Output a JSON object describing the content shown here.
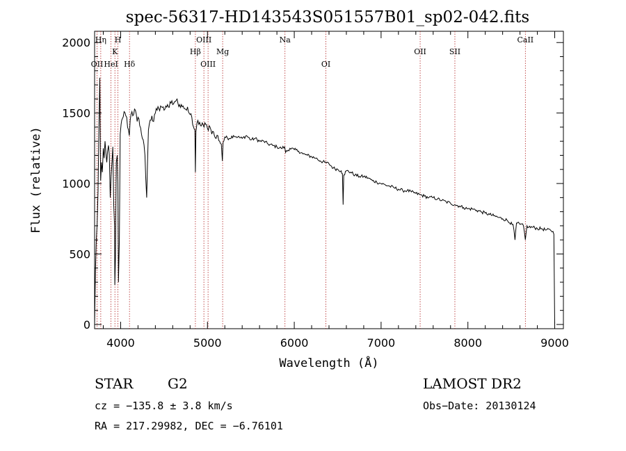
{
  "chart_data": {
    "type": "line",
    "title": "spec-56317-HD143543S051557B01_sp02-042.fits",
    "xlabel": "Wavelength (Å)",
    "ylabel": "Flux (relative)",
    "xlim": [
      3700,
      9100
    ],
    "ylim": [
      -30,
      2080
    ],
    "x_ticks": [
      4000,
      5000,
      6000,
      7000,
      8000,
      9000
    ],
    "y_ticks": [
      0,
      500,
      1000,
      1500,
      2000
    ],
    "series": [
      {
        "name": "spectrum",
        "x": [
          3700,
          3710,
          3720,
          3730,
          3740,
          3750,
          3760,
          3770,
          3780,
          3790,
          3800,
          3810,
          3820,
          3830,
          3840,
          3850,
          3860,
          3870,
          3880,
          3890,
          3900,
          3910,
          3920,
          3930,
          3933,
          3940,
          3950,
          3960,
          3968,
          3975,
          3985,
          3995,
          4005,
          4020,
          4040,
          4060,
          4080,
          4100,
          4110,
          4130,
          4150,
          4170,
          4190,
          4200,
          4220,
          4240,
          4260,
          4280,
          4300,
          4310,
          4320,
          4340,
          4360,
          4380,
          4400,
          4420,
          4440,
          4460,
          4480,
          4500,
          4520,
          4540,
          4560,
          4580,
          4600,
          4620,
          4640,
          4660,
          4680,
          4700,
          4720,
          4740,
          4760,
          4780,
          4800,
          4820,
          4840,
          4855,
          4861,
          4867,
          4880,
          4900,
          4920,
          4940,
          4960,
          4980,
          5000,
          5020,
          5040,
          5060,
          5080,
          5100,
          5120,
          5140,
          5160,
          5172,
          5180,
          5200,
          5250,
          5300,
          5350,
          5400,
          5450,
          5500,
          5550,
          5600,
          5650,
          5700,
          5750,
          5800,
          5850,
          5890,
          5900,
          5950,
          6000,
          6050,
          6100,
          6150,
          6200,
          6250,
          6300,
          6350,
          6400,
          6450,
          6500,
          6540,
          6555,
          6563,
          6570,
          6600,
          6650,
          6700,
          6750,
          6800,
          6850,
          6900,
          6950,
          7000,
          7050,
          7100,
          7150,
          7200,
          7250,
          7300,
          7350,
          7400,
          7450,
          7500,
          7550,
          7600,
          7650,
          7700,
          7750,
          7800,
          7850,
          7900,
          7950,
          8000,
          8050,
          8100,
          8150,
          8200,
          8250,
          8300,
          8350,
          8400,
          8450,
          8480,
          8500,
          8520,
          8542,
          8560,
          8600,
          8640,
          8662,
          8680,
          8700,
          8750,
          8800,
          8850,
          8900,
          8950,
          8980,
          8990,
          9000
        ],
        "values": [
          0,
          380,
          600,
          720,
          950,
          1400,
          1750,
          1020,
          1150,
          1080,
          1250,
          1180,
          1300,
          1220,
          1150,
          1230,
          1270,
          1200,
          900,
          1050,
          1150,
          1260,
          850,
          700,
          280,
          480,
          1150,
          1200,
          1000,
          300,
          600,
          1350,
          1420,
          1460,
          1510,
          1480,
          1400,
          1340,
          1450,
          1510,
          1490,
          1520,
          1440,
          1470,
          1410,
          1350,
          1310,
          1200,
          900,
          1150,
          1380,
          1450,
          1480,
          1440,
          1500,
          1520,
          1530,
          1550,
          1540,
          1520,
          1550,
          1560,
          1540,
          1570,
          1560,
          1580,
          1590,
          1570,
          1560,
          1560,
          1550,
          1530,
          1520,
          1510,
          1490,
          1470,
          1400,
          1380,
          1080,
          1370,
          1430,
          1420,
          1410,
          1430,
          1400,
          1420,
          1390,
          1410,
          1380,
          1370,
          1340,
          1320,
          1340,
          1300,
          1280,
          1160,
          1290,
          1330,
          1320,
          1340,
          1330,
          1320,
          1340,
          1310,
          1320,
          1300,
          1300,
          1280,
          1270,
          1260,
          1250,
          1260,
          1220,
          1250,
          1240,
          1230,
          1210,
          1200,
          1190,
          1180,
          1160,
          1150,
          1140,
          1110,
          1100,
          1090,
          1070,
          850,
          1060,
          1090,
          1080,
          1060,
          1050,
          1050,
          1040,
          1020,
          1010,
          1000,
          990,
          980,
          970,
          960,
          950,
          950,
          940,
          930,
          920,
          910,
          900,
          900,
          890,
          880,
          870,
          860,
          850,
          840,
          830,
          820,
          820,
          810,
          800,
          790,
          780,
          770,
          760,
          750,
          740,
          720,
          725,
          710,
          600,
          720,
          710,
          700,
          600,
          700,
          690,
          690,
          680,
          680,
          670,
          670,
          660,
          640,
          0
        ]
      }
    ],
    "line_markers": [
      {
        "x": 3728,
        "label": "OII",
        "row": 3
      },
      {
        "x": 3771,
        "label": "Hη",
        "row": 1
      },
      {
        "x": 3889,
        "label": "HeI",
        "row": 3
      },
      {
        "x": 3934,
        "label": "K",
        "row": 2
      },
      {
        "x": 3969,
        "label": "H",
        "row": 1
      },
      {
        "x": 4102,
        "label": "Hδ",
        "row": 3
      },
      {
        "x": 4861,
        "label": "Hβ",
        "row": 2
      },
      {
        "x": 4959,
        "label": "OIII",
        "row": 1
      },
      {
        "x": 5007,
        "label": "OIII",
        "row": 3
      },
      {
        "x": 5175,
        "label": "Mg",
        "row": 2
      },
      {
        "x": 5893,
        "label": "Na",
        "row": 1
      },
      {
        "x": 6364,
        "label": "OI",
        "row": 3
      },
      {
        "x": 7450,
        "label": "OII",
        "row": 2
      },
      {
        "x": 7850,
        "label": "SII",
        "row": 2
      },
      {
        "x": 8662,
        "label": "CaII",
        "row": 1
      }
    ]
  },
  "info": {
    "object_class": "STAR",
    "subclass": "G2",
    "survey": "LAMOST DR2",
    "cz": "cz = −135.8 ± 3.8 km/s",
    "obs_date": "Obs−Date: 20130124",
    "radec": "RA = 217.29982, DEC =  −6.76101"
  }
}
